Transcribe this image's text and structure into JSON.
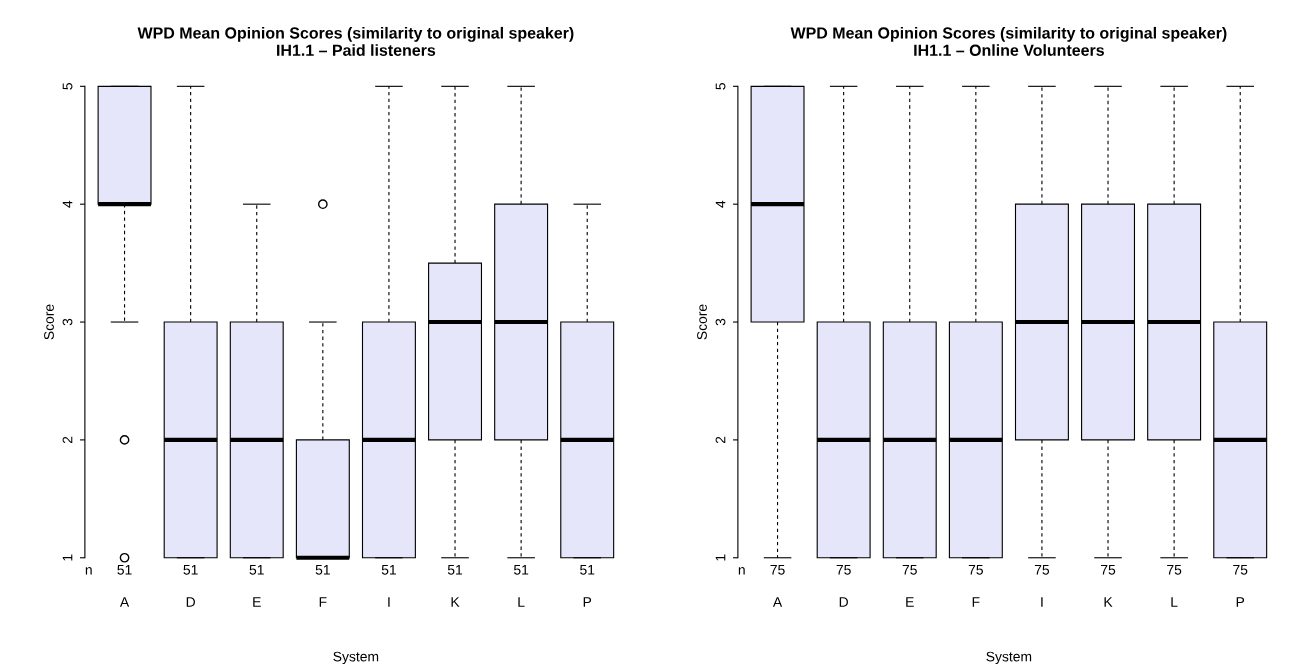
{
  "chart_data": [
    {
      "type": "box",
      "title": "WPD Mean Opinion Scores (similarity to original speaker)\nIH1.1 – Paid listeners",
      "xlabel": "System",
      "ylabel": "Score",
      "color": "#e6e6fa",
      "categories": [
        "A",
        "D",
        "E",
        "F",
        "I",
        "K",
        "L",
        "P"
      ],
      "boxes": [
        {
          "low": 3,
          "q1": 4,
          "median": 4,
          "q3": 5,
          "high": 5,
          "outliers": [
            2,
            1
          ]
        },
        {
          "low": 1,
          "q1": 1,
          "median": 2,
          "q3": 3,
          "high": 5
        },
        {
          "low": 1,
          "q1": 1,
          "median": 2,
          "q3": 3,
          "high": 4
        },
        {
          "low": 1,
          "q1": 1,
          "median": 1,
          "q3": 2,
          "high": 3,
          "outliers": [
            4
          ]
        },
        {
          "low": 1,
          "q1": 1,
          "median": 2,
          "q3": 3,
          "high": 5
        },
        {
          "low": 1,
          "q1": 2,
          "median": 3,
          "q3": 3.5,
          "high": 5
        },
        {
          "low": 1,
          "q1": 2,
          "median": 3,
          "q3": 4,
          "high": 5
        },
        {
          "low": 1,
          "q1": 1,
          "median": 2,
          "q3": 3,
          "high": 4
        }
      ],
      "ylim": [
        1,
        5
      ],
      "yticks": [
        1,
        2,
        3,
        4,
        5
      ],
      "annotations": [
        "n",
        "51",
        "51",
        "51",
        "51",
        "51",
        "51",
        "51",
        "51"
      ]
    },
    {
      "type": "box",
      "title": "WPD Mean Opinion Scores (similarity to original speaker)\nIH1.1 – Online Volunteers",
      "xlabel": "System",
      "ylabel": "Score",
      "color": "#e6e6fa",
      "categories": [
        "A",
        "D",
        "E",
        "F",
        "I",
        "K",
        "L",
        "P"
      ],
      "boxes": [
        {
          "low": 1,
          "q1": 3,
          "median": 4,
          "q3": 5,
          "high": 5
        },
        {
          "low": 1,
          "q1": 1,
          "median": 2,
          "q3": 3,
          "high": 5
        },
        {
          "low": 1,
          "q1": 1,
          "median": 2,
          "q3": 3,
          "high": 5
        },
        {
          "low": 1,
          "q1": 1,
          "median": 2,
          "q3": 3,
          "high": 5
        },
        {
          "low": 1,
          "q1": 2,
          "median": 3,
          "q3": 4,
          "high": 5
        },
        {
          "low": 1,
          "q1": 2,
          "median": 3,
          "q3": 4,
          "high": 5
        },
        {
          "low": 1,
          "q1": 2,
          "median": 3,
          "q3": 4,
          "high": 5
        },
        {
          "low": 1,
          "q1": 1,
          "median": 2,
          "q3": 3,
          "high": 5
        }
      ],
      "ylim": [
        1,
        5
      ],
      "yticks": [
        1,
        2,
        3,
        4,
        5
      ],
      "annotations": [
        "n",
        "75",
        "75",
        "75",
        "75",
        "75",
        "75",
        "75",
        "75"
      ]
    }
  ]
}
